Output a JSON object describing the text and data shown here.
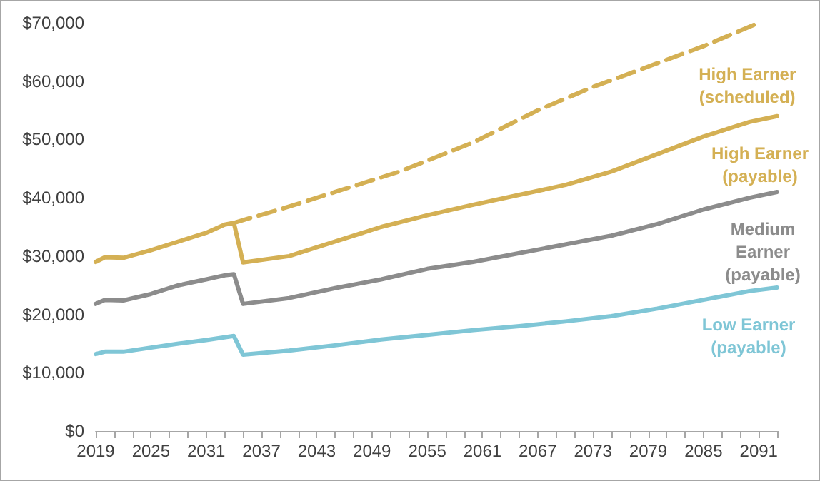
{
  "chart_data": {
    "type": "line",
    "xlim": [
      2019,
      2093
    ],
    "ylim": [
      0,
      70000
    ],
    "xticks": [
      2019,
      {
        "value": 2021,
        "label": null
      },
      {
        "value": 2023,
        "label": null
      },
      2025,
      {
        "value": 2027,
        "label": null
      },
      {
        "value": 2029,
        "label": null
      },
      2031,
      {
        "value": 2033,
        "label": null
      },
      {
        "value": 2035,
        "label": null
      },
      2037,
      {
        "value": 2039,
        "label": null
      },
      {
        "value": 2041,
        "label": null
      },
      2043,
      {
        "value": 2045,
        "label": null
      },
      {
        "value": 2047,
        "label": null
      },
      2049,
      {
        "value": 2051,
        "label": null
      },
      {
        "value": 2053,
        "label": null
      },
      2055,
      {
        "value": 2057,
        "label": null
      },
      {
        "value": 2059,
        "label": null
      },
      2061,
      {
        "value": 2063,
        "label": null
      },
      {
        "value": 2065,
        "label": null
      },
      2067,
      {
        "value": 2069,
        "label": null
      },
      {
        "value": 2071,
        "label": null
      },
      2073,
      {
        "value": 2075,
        "label": null
      },
      {
        "value": 2077,
        "label": null
      },
      2079,
      {
        "value": 2081,
        "label": null
      },
      {
        "value": 2083,
        "label": null
      },
      2085,
      {
        "value": 2087,
        "label": null
      },
      {
        "value": 2089,
        "label": null
      },
      2091,
      {
        "value": 2093,
        "label": null
      }
    ],
    "yticks": [
      {
        "value": 0,
        "label": "$0"
      },
      {
        "value": 10000,
        "label": "$10,000"
      },
      {
        "value": 20000,
        "label": "$20,000"
      },
      {
        "value": 30000,
        "label": "$30,000"
      },
      {
        "value": 40000,
        "label": "$40,000"
      },
      {
        "value": 50000,
        "label": "$50,000"
      },
      {
        "value": 60000,
        "label": "$60,000"
      },
      {
        "value": 70000,
        "label": "$70,000"
      }
    ],
    "grid": false,
    "legend": false,
    "marker": "none",
    "series": [
      {
        "name": "High Earner (scheduled)",
        "color": "#d4b054",
        "line_style": "dashed",
        "x": [
          2034,
          2040,
          2045,
          2052,
          2060,
          2067,
          2073,
          2079,
          2085,
          2091
        ],
        "values": [
          35700,
          38500,
          41000,
          44500,
          49500,
          55000,
          59000,
          62500,
          66000,
          70000
        ]
      },
      {
        "name": "High Earner (payable)",
        "color": "#d4b054",
        "line_style": "solid",
        "x": [
          2019,
          2020,
          2022,
          2025,
          2028,
          2031,
          2033,
          2034,
          2035,
          2040,
          2045,
          2050,
          2055,
          2060,
          2065,
          2070,
          2075,
          2080,
          2085,
          2090,
          2093
        ],
        "values": [
          29000,
          29800,
          29700,
          31000,
          32500,
          34000,
          35400,
          35700,
          28900,
          30000,
          32500,
          35000,
          37000,
          38800,
          40500,
          42200,
          44500,
          47500,
          50500,
          53000,
          54000
        ]
      },
      {
        "name": "Medium Earner (payable)",
        "color": "#8c8c8c",
        "line_style": "solid",
        "x": [
          2019,
          2020,
          2022,
          2025,
          2028,
          2031,
          2033,
          2034,
          2035,
          2040,
          2045,
          2050,
          2055,
          2060,
          2065,
          2070,
          2075,
          2080,
          2085,
          2090,
          2093
        ],
        "values": [
          21800,
          22500,
          22400,
          23500,
          25000,
          26000,
          26700,
          26900,
          21800,
          22800,
          24500,
          26000,
          27800,
          29000,
          30500,
          32000,
          33500,
          35500,
          38000,
          40000,
          41000
        ]
      },
      {
        "name": "Low Earner (payable)",
        "color": "#7fc6d6",
        "line_style": "solid",
        "x": [
          2019,
          2020,
          2022,
          2025,
          2028,
          2031,
          2034,
          2035,
          2040,
          2045,
          2050,
          2055,
          2060,
          2065,
          2070,
          2075,
          2080,
          2085,
          2090,
          2093
        ],
        "values": [
          13200,
          13600,
          13600,
          14300,
          15000,
          15600,
          16300,
          13100,
          13800,
          14700,
          15700,
          16500,
          17300,
          18000,
          18800,
          19700,
          21000,
          22500,
          24000,
          24600
        ]
      }
    ]
  }
}
